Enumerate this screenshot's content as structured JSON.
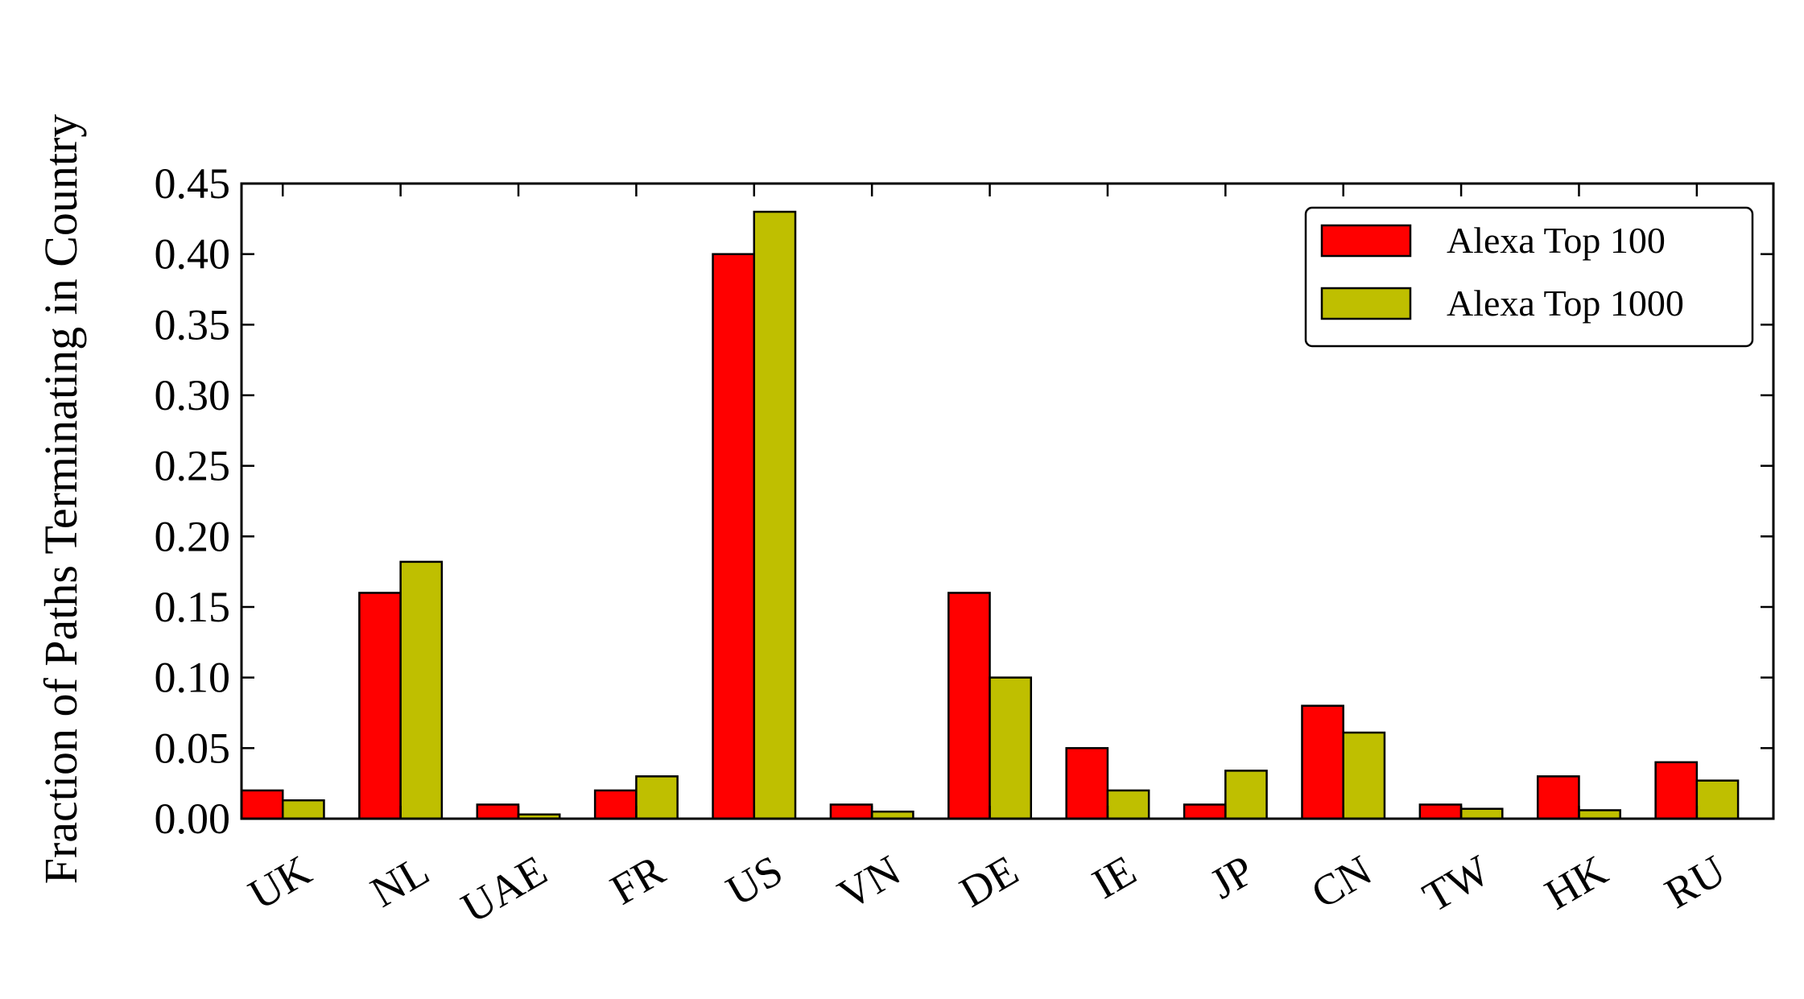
{
  "chart_data": {
    "type": "bar",
    "title": "",
    "xlabel": "",
    "ylabel": "Fraction of Paths Terminating in Country",
    "categories": [
      "UK",
      "NL",
      "UAE",
      "FR",
      "US",
      "VN",
      "DE",
      "IE",
      "JP",
      "CN",
      "TW",
      "HK",
      "RU"
    ],
    "series": [
      {
        "name": "Alexa Top 100",
        "color": "#ff0000",
        "values": [
          0.02,
          0.16,
          0.01,
          0.02,
          0.4,
          0.01,
          0.16,
          0.05,
          0.01,
          0.08,
          0.01,
          0.03,
          0.04
        ]
      },
      {
        "name": "Alexa Top 1000",
        "color": "#bfbf00",
        "values": [
          0.013,
          0.182,
          0.003,
          0.03,
          0.43,
          0.005,
          0.1,
          0.02,
          0.034,
          0.061,
          0.007,
          0.006,
          0.027
        ]
      }
    ],
    "ylim": [
      0,
      0.45
    ],
    "yticks": [
      "0.00",
      "0.05",
      "0.10",
      "0.15",
      "0.20",
      "0.25",
      "0.30",
      "0.35",
      "0.40",
      "0.45"
    ],
    "grid": false,
    "legend_position": "top-right"
  }
}
